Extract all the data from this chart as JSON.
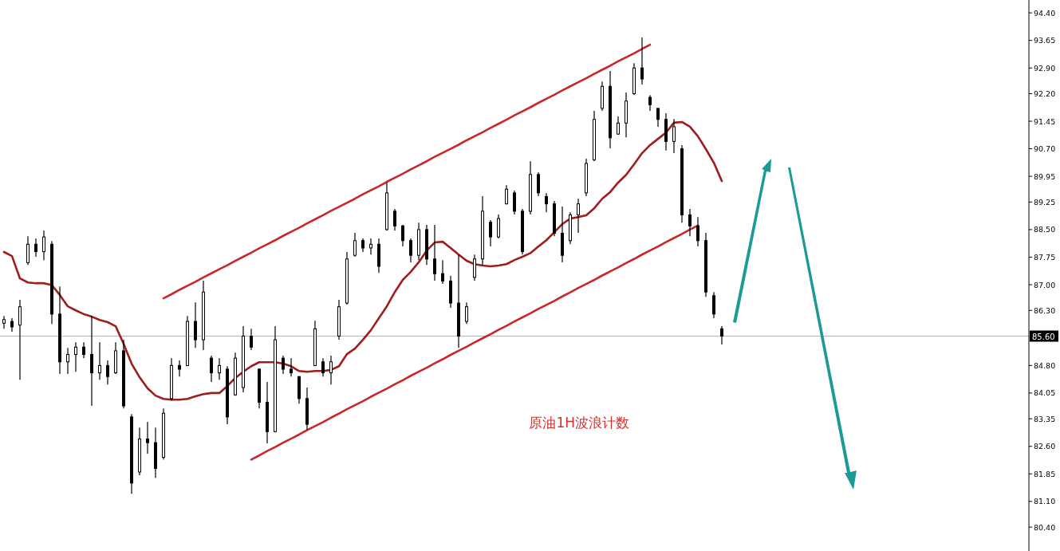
{
  "chart_data": {
    "type": "candlestick",
    "color": "#000000",
    "tick_labels": "y",
    "annotations": [
      "原油1H波浪计数"
    ],
    "ylim": [
      79.75,
      94.75
    ],
    "yticks": [
      {
        "value": 94.4,
        "label": "94.40"
      },
      {
        "value": 93.65,
        "label": "93.65"
      },
      {
        "value": 92.9,
        "label": "92.90"
      },
      {
        "value": 92.2,
        "label": "92.20"
      },
      {
        "value": 91.45,
        "label": "91.45"
      },
      {
        "value": 90.7,
        "label": "90.70"
      },
      {
        "value": 89.95,
        "label": "89.95"
      },
      {
        "value": 89.25,
        "label": "89.25"
      },
      {
        "value": 88.5,
        "label": "88.50"
      },
      {
        "value": 87.75,
        "label": "87.75"
      },
      {
        "value": 87.0,
        "label": "87.00"
      },
      {
        "value": 86.3,
        "label": "86.30"
      },
      {
        "value": 84.8,
        "label": "84.80"
      },
      {
        "value": 84.05,
        "label": "84.05"
      },
      {
        "value": 83.35,
        "label": "83.35"
      },
      {
        "value": 82.6,
        "label": "82.60"
      },
      {
        "value": 81.85,
        "label": "81.85"
      },
      {
        "value": 81.1,
        "label": "81.10"
      },
      {
        "value": 80.4,
        "label": "80.40"
      }
    ],
    "ref_lines": [
      {
        "axis": "y",
        "value": 85.6,
        "label": "85.60",
        "color": "#b4b4b4"
      }
    ],
    "categories": [
      null,
      null,
      null,
      null,
      null,
      null,
      null,
      null,
      null,
      null,
      null,
      null,
      null,
      null,
      null,
      null,
      null,
      null,
      null,
      null,
      null,
      null,
      null,
      null,
      null,
      null,
      null,
      null,
      null,
      null,
      null,
      null,
      null,
      null,
      null,
      null,
      null,
      null,
      null,
      null,
      null,
      null,
      null,
      null,
      null,
      null,
      null,
      null,
      null,
      null,
      null,
      null,
      null,
      null,
      null,
      null,
      null,
      null,
      null,
      null,
      null,
      null,
      null,
      null,
      null,
      null,
      null,
      null,
      null,
      null,
      null,
      null,
      null,
      null,
      null,
      null,
      null,
      null,
      null,
      null,
      null,
      null,
      null,
      null,
      null,
      null,
      null,
      null,
      null,
      null,
      null
    ],
    "ohlc": [
      [
        85.95,
        86.15,
        85.8,
        86.05
      ],
      [
        86.0,
        86.09,
        85.72,
        85.85
      ],
      [
        85.9,
        86.59,
        84.41,
        86.4
      ],
      [
        87.6,
        88.32,
        87.54,
        88.1
      ],
      [
        88.1,
        88.26,
        87.76,
        87.9
      ],
      [
        87.9,
        88.47,
        87.67,
        88.3
      ],
      [
        88.1,
        88.19,
        85.93,
        86.2
      ],
      [
        86.2,
        86.95,
        84.57,
        84.9
      ],
      [
        84.9,
        85.28,
        84.57,
        85.1
      ],
      [
        85.1,
        85.43,
        84.63,
        85.3
      ],
      [
        85.3,
        85.43,
        85.0,
        85.1
      ],
      [
        85.1,
        86.15,
        83.7,
        84.6
      ],
      [
        84.6,
        85.43,
        84.41,
        84.8
      ],
      [
        84.8,
        84.94,
        84.28,
        84.5
      ],
      [
        84.6,
        85.43,
        84.57,
        85.2
      ],
      [
        85.2,
        85.5,
        83.63,
        83.7
      ],
      [
        83.4,
        83.48,
        81.31,
        81.6
      ],
      [
        81.9,
        83.11,
        81.81,
        82.8
      ],
      [
        82.8,
        83.26,
        82.4,
        82.7
      ],
      [
        82.7,
        83.11,
        81.74,
        82.0
      ],
      [
        82.3,
        83.63,
        82.24,
        83.5
      ],
      [
        83.9,
        85.0,
        83.85,
        84.8
      ],
      [
        84.8,
        84.94,
        84.5,
        84.7
      ],
      [
        84.8,
        86.15,
        84.78,
        86.0
      ],
      [
        86.0,
        86.52,
        85.28,
        85.5
      ],
      [
        85.5,
        87.11,
        85.22,
        86.8
      ],
      [
        85.0,
        85.07,
        84.35,
        84.6
      ],
      [
        84.6,
        85.0,
        84.41,
        84.8
      ],
      [
        84.7,
        84.78,
        83.2,
        83.4
      ],
      [
        84.0,
        85.15,
        83.98,
        85.0
      ],
      [
        84.2,
        85.87,
        84.07,
        85.6
      ],
      [
        85.6,
        85.8,
        85.22,
        85.3
      ],
      [
        84.7,
        84.72,
        83.63,
        83.8
      ],
      [
        83.8,
        84.35,
        82.68,
        83.0
      ],
      [
        83.0,
        85.87,
        82.98,
        85.5
      ],
      [
        85.0,
        85.07,
        84.57,
        84.7
      ],
      [
        84.7,
        85.0,
        84.5,
        84.6
      ],
      [
        84.5,
        84.5,
        83.76,
        83.9
      ],
      [
        83.9,
        84.2,
        83.05,
        83.2
      ],
      [
        84.8,
        86.02,
        84.78,
        85.8
      ],
      [
        84.9,
        85.0,
        84.5,
        84.6
      ],
      [
        84.6,
        85.07,
        84.28,
        84.9
      ],
      [
        85.6,
        86.59,
        85.5,
        86.4
      ],
      [
        86.5,
        87.89,
        86.46,
        87.7
      ],
      [
        87.8,
        88.41,
        87.76,
        88.2
      ],
      [
        88.2,
        88.26,
        87.89,
        88.0
      ],
      [
        88.0,
        88.26,
        87.82,
        88.1
      ],
      [
        88.1,
        88.26,
        87.32,
        87.5
      ],
      [
        88.5,
        89.78,
        88.47,
        89.5
      ],
      [
        89.0,
        89.06,
        88.47,
        88.6
      ],
      [
        88.6,
        88.63,
        88.04,
        88.2
      ],
      [
        88.2,
        88.26,
        87.61,
        87.8
      ],
      [
        87.8,
        88.69,
        87.67,
        88.5
      ],
      [
        88.5,
        88.63,
        87.54,
        87.7
      ],
      [
        87.7,
        88.63,
        87.11,
        87.3
      ],
      [
        87.3,
        87.67,
        87.02,
        87.1
      ],
      [
        87.1,
        87.24,
        86.37,
        86.5
      ],
      [
        86.5,
        87.82,
        85.28,
        85.6
      ],
      [
        86.0,
        86.52,
        85.93,
        86.4
      ],
      [
        87.2,
        87.82,
        87.11,
        87.7
      ],
      [
        87.7,
        89.41,
        87.54,
        89.0
      ],
      [
        88.7,
        88.76,
        88.04,
        88.3
      ],
      [
        88.3,
        88.91,
        88.26,
        88.8
      ],
      [
        89.2,
        89.71,
        89.19,
        89.6
      ],
      [
        89.5,
        89.56,
        88.91,
        89.0
      ],
      [
        89.0,
        89.06,
        87.82,
        87.9
      ],
      [
        89.0,
        90.36,
        88.91,
        90.0
      ],
      [
        90.0,
        90.06,
        89.41,
        89.5
      ],
      [
        89.4,
        89.49,
        88.97,
        89.2
      ],
      [
        89.2,
        89.28,
        88.32,
        88.4
      ],
      [
        88.4,
        89.13,
        87.61,
        87.8
      ],
      [
        88.2,
        88.97,
        88.1,
        88.9
      ],
      [
        88.9,
        89.34,
        88.41,
        89.2
      ],
      [
        89.5,
        90.43,
        89.41,
        90.3
      ],
      [
        90.4,
        91.73,
        90.36,
        91.5
      ],
      [
        91.8,
        92.53,
        91.73,
        92.4
      ],
      [
        92.4,
        92.82,
        90.71,
        91.0
      ],
      [
        91.1,
        91.58,
        91.08,
        91.4
      ],
      [
        91.4,
        92.23,
        91.01,
        92.0
      ],
      [
        92.2,
        93.03,
        92.16,
        92.9
      ],
      [
        92.9,
        93.73,
        92.45,
        92.6
      ],
      [
        92.1,
        92.16,
        91.73,
        91.9
      ],
      [
        91.8,
        91.8,
        91.3,
        91.5
      ],
      [
        91.5,
        91.67,
        90.65,
        90.9
      ],
      [
        90.9,
        91.51,
        90.58,
        91.3
      ],
      [
        90.7,
        90.8,
        88.69,
        88.9
      ],
      [
        88.9,
        89.06,
        88.32,
        88.6
      ],
      [
        88.6,
        88.84,
        88.04,
        88.2
      ],
      [
        88.2,
        88.41,
        86.67,
        86.8
      ],
      [
        86.7,
        86.8,
        86.09,
        86.2
      ],
      [
        85.8,
        85.87,
        85.37,
        85.6
      ]
    ],
    "series": [
      {
        "type": "line",
        "color": "#9e1d1d",
        "values": [
          87.89,
          87.78,
          87.17,
          87.06,
          87.04,
          87.04,
          86.99,
          86.72,
          86.41,
          86.3,
          86.2,
          86.13,
          86.04,
          85.98,
          85.87,
          85.39,
          84.85,
          84.48,
          84.18,
          83.98,
          83.89,
          83.87,
          83.87,
          83.89,
          83.96,
          84.02,
          84.05,
          84.05,
          84.24,
          84.46,
          84.63,
          84.78,
          84.89,
          84.89,
          84.89,
          84.85,
          84.78,
          84.65,
          84.63,
          84.65,
          84.65,
          84.68,
          84.78,
          85.11,
          85.26,
          85.5,
          85.76,
          86.09,
          86.41,
          86.8,
          87.13,
          87.35,
          87.61,
          87.93,
          88.15,
          88.17,
          88.0,
          87.82,
          87.65,
          87.56,
          87.52,
          87.5,
          87.52,
          87.56,
          87.67,
          87.76,
          87.86,
          88.04,
          88.21,
          88.43,
          88.65,
          88.8,
          88.84,
          88.89,
          89.08,
          89.34,
          89.52,
          89.78,
          89.99,
          90.28,
          90.58,
          90.8,
          90.97,
          91.14,
          91.41,
          91.43,
          91.3,
          91.04,
          90.69,
          90.32,
          89.82
        ]
      },
      {
        "type": "line",
        "color": "#c8282a",
        "values": [
          null,
          null,
          null,
          null,
          null,
          null,
          null,
          null,
          null,
          null,
          null,
          null,
          null,
          null,
          null,
          null,
          null,
          null,
          null,
          null,
          86.63,
          86.74,
          86.86,
          86.97,
          87.08,
          87.2,
          87.31,
          87.42,
          87.53,
          87.65,
          87.76,
          87.87,
          87.99,
          88.1,
          88.21,
          88.33,
          88.44,
          88.55,
          88.67,
          88.78,
          88.89,
          89.01,
          89.12,
          89.23,
          89.34,
          89.46,
          89.57,
          89.68,
          89.8,
          89.91,
          90.02,
          90.14,
          90.25,
          90.36,
          90.48,
          90.59,
          90.7,
          90.81,
          90.93,
          91.04,
          91.15,
          91.27,
          91.38,
          91.49,
          91.61,
          91.72,
          91.83,
          91.95,
          92.06,
          92.17,
          92.29,
          92.4,
          92.51,
          92.62,
          92.74,
          92.85,
          92.96,
          93.08,
          93.19,
          93.3,
          93.42,
          93.53,
          null,
          null,
          null,
          null,
          null,
          null,
          null,
          null,
          null
        ]
      },
      {
        "type": "line",
        "color": "#c8282a",
        "values": [
          null,
          null,
          null,
          null,
          null,
          null,
          null,
          null,
          null,
          null,
          null,
          null,
          null,
          null,
          null,
          null,
          null,
          null,
          null,
          null,
          null,
          null,
          null,
          null,
          null,
          null,
          null,
          null,
          null,
          null,
          null,
          82.24,
          82.35,
          82.47,
          82.58,
          82.7,
          82.81,
          82.92,
          83.04,
          83.15,
          83.26,
          83.38,
          83.49,
          83.61,
          83.72,
          83.83,
          83.95,
          84.06,
          84.17,
          84.29,
          84.4,
          84.52,
          84.63,
          84.74,
          84.86,
          84.97,
          85.09,
          85.2,
          85.31,
          85.43,
          85.54,
          85.65,
          85.77,
          85.88,
          86.0,
          86.11,
          86.22,
          86.34,
          86.45,
          86.56,
          86.68,
          86.79,
          86.91,
          87.02,
          87.13,
          87.25,
          87.36,
          87.47,
          87.59,
          87.7,
          87.82,
          87.93,
          88.04,
          88.16,
          88.27,
          88.38,
          88.5,
          88.61,
          null,
          null,
          null
        ]
      }
    ]
  }
}
